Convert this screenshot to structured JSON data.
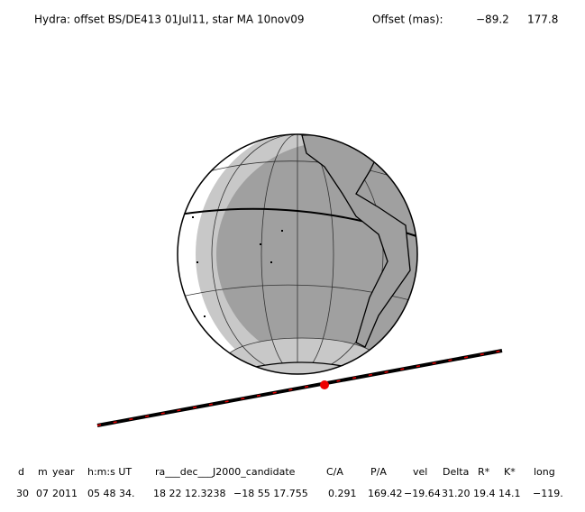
{
  "header": {
    "title": "Hydra: offset BS/DE413 01Jul11, star MA 10nov09",
    "offset_label": "Offset (mas):",
    "offset_values": [
      "−89.2",
      "177.8"
    ]
  },
  "table": {
    "columns": [
      "d",
      "m",
      "year",
      "h:m:s UT",
      "ra___dec___J2000_candidate",
      "C/A",
      "P/A",
      "vel",
      "Delta",
      "R*",
      "K*",
      "long"
    ],
    "rows": [
      [
        "30",
        "07",
        "2011",
        "05 48 34.",
        "18 22 12.3238",
        "−18 55 17.755",
        "0.291",
        "169.42",
        "−19.64",
        "31.20",
        "19.4",
        "14.1",
        "−119."
      ]
    ]
  }
}
